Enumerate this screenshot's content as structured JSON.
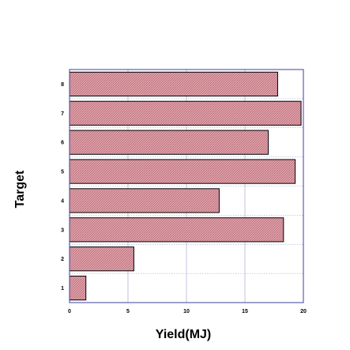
{
  "chart_data": {
    "type": "bar",
    "orientation": "horizontal",
    "categories": [
      "1",
      "2",
      "3",
      "4",
      "5",
      "6",
      "7",
      "8"
    ],
    "values": [
      1.4,
      5.5,
      18.3,
      12.8,
      19.3,
      17.0,
      19.8,
      17.8
    ],
    "xlabel": "Yield(MJ)",
    "ylabel": "Target",
    "xlim": [
      0,
      20
    ],
    "xticks": [
      "0",
      "5",
      "10",
      "15",
      "20"
    ],
    "grid": true,
    "legend": "none",
    "colors": {
      "bar_fill": "#d98a94",
      "bar_edge": "#000000",
      "frame": "#3f3f9f",
      "grid": "#9a9ac8"
    }
  }
}
